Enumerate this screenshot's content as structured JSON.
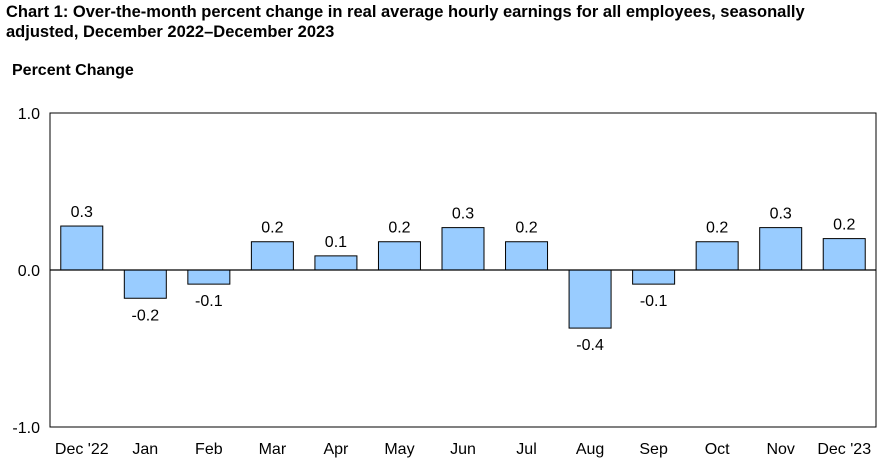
{
  "header": {
    "title": "Chart 1: Over-the-month percent change in real average hourly earnings for all employees, seasonally adjusted, December 2022–December 2023"
  },
  "colors": {
    "bar_fill": "#99CCFF",
    "bar_stroke": "#000000",
    "axis": "#000000",
    "background": "#FFFFFF"
  },
  "chart_data": {
    "type": "bar",
    "title": "Chart 1: Over-the-month percent change in real average hourly earnings for all employees, seasonally adjusted, December 2022–December 2023",
    "ylabel": "Percent Change",
    "xlabel": "",
    "categories": [
      "Dec '22",
      "Jan",
      "Feb",
      "Mar",
      "Apr",
      "May",
      "Jun",
      "Jul",
      "Aug",
      "Sep",
      "Oct",
      "Nov",
      "Dec '23"
    ],
    "values": [
      0.28,
      -0.18,
      -0.09,
      0.18,
      0.09,
      0.18,
      0.27,
      0.18,
      -0.37,
      -0.09,
      0.18,
      0.27,
      0.2
    ],
    "data_labels": [
      "0.3",
      "-0.2",
      "-0.1",
      "0.2",
      "0.1",
      "0.2",
      "0.3",
      "0.2",
      "-0.4",
      "-0.1",
      "0.2",
      "0.3",
      "0.2"
    ],
    "ylim": [
      -1.0,
      1.0
    ],
    "yticks": [
      1.0,
      0.0,
      -1.0
    ],
    "ytick_labels": [
      "1.0",
      "0.0",
      "-1.0"
    ],
    "grid": false,
    "legend": "none"
  }
}
